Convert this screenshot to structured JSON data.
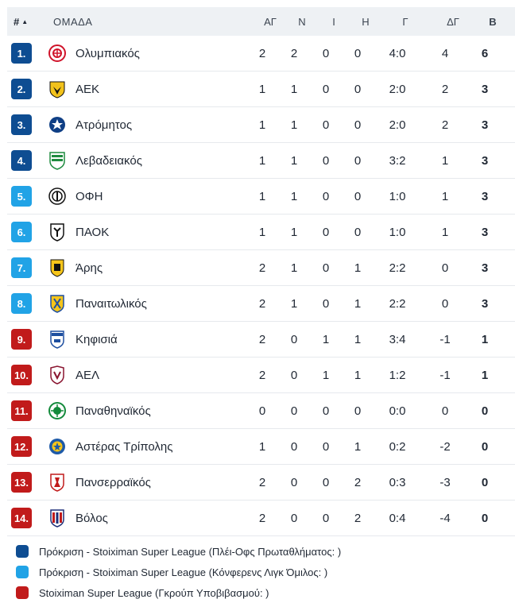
{
  "header": {
    "rank": "#",
    "sort_icon": "▲",
    "team": "ΟΜΑΔΑ",
    "gp": "ΑΓ",
    "w": "Ν",
    "d": "Ι",
    "l": "Η",
    "goals": "Γ",
    "gd": "ΔΓ",
    "pts": "Β"
  },
  "colors": {
    "dark_blue": "#0e4d92",
    "light_blue": "#21a3e6",
    "red": "#c11b1b"
  },
  "rows": [
    {
      "rank": "1.",
      "team": "Ολυμπιακός",
      "gp": "2",
      "w": "2",
      "d": "0",
      "l": "0",
      "goals": "4:0",
      "gd": "4",
      "pts": "6",
      "zone": "dark_blue",
      "crest_icon": "olympiakos-crest-icon"
    },
    {
      "rank": "2.",
      "team": "ΑΕΚ",
      "gp": "1",
      "w": "1",
      "d": "0",
      "l": "0",
      "goals": "2:0",
      "gd": "2",
      "pts": "3",
      "zone": "dark_blue",
      "crest_icon": "aek-crest-icon"
    },
    {
      "rank": "3.",
      "team": "Ατρόμητος",
      "gp": "1",
      "w": "1",
      "d": "0",
      "l": "0",
      "goals": "2:0",
      "gd": "2",
      "pts": "3",
      "zone": "dark_blue",
      "crest_icon": "atromitos-crest-icon"
    },
    {
      "rank": "4.",
      "team": "Λεβαδειακός",
      "gp": "1",
      "w": "1",
      "d": "0",
      "l": "0",
      "goals": "3:2",
      "gd": "1",
      "pts": "3",
      "zone": "dark_blue",
      "crest_icon": "levadiakos-crest-icon"
    },
    {
      "rank": "5.",
      "team": "ΟΦΗ",
      "gp": "1",
      "w": "1",
      "d": "0",
      "l": "0",
      "goals": "1:0",
      "gd": "1",
      "pts": "3",
      "zone": "light_blue",
      "crest_icon": "ofi-crest-icon"
    },
    {
      "rank": "6.",
      "team": "ΠΑΟΚ",
      "gp": "1",
      "w": "1",
      "d": "0",
      "l": "0",
      "goals": "1:0",
      "gd": "1",
      "pts": "3",
      "zone": "light_blue",
      "crest_icon": "paok-crest-icon"
    },
    {
      "rank": "7.",
      "team": "Άρης",
      "gp": "2",
      "w": "1",
      "d": "0",
      "l": "1",
      "goals": "2:2",
      "gd": "0",
      "pts": "3",
      "zone": "light_blue",
      "crest_icon": "aris-crest-icon"
    },
    {
      "rank": "8.",
      "team": "Παναιτωλικός",
      "gp": "2",
      "w": "1",
      "d": "0",
      "l": "1",
      "goals": "2:2",
      "gd": "0",
      "pts": "3",
      "zone": "light_blue",
      "crest_icon": "panaitolikos-crest-icon"
    },
    {
      "rank": "9.",
      "team": "Κηφισιά",
      "gp": "2",
      "w": "0",
      "d": "1",
      "l": "1",
      "goals": "3:4",
      "gd": "-1",
      "pts": "1",
      "zone": "red",
      "crest_icon": "kifisia-crest-icon"
    },
    {
      "rank": "10.",
      "team": "ΑΕΛ",
      "gp": "2",
      "w": "0",
      "d": "1",
      "l": "1",
      "goals": "1:2",
      "gd": "-1",
      "pts": "1",
      "zone": "red",
      "crest_icon": "ael-crest-icon"
    },
    {
      "rank": "11.",
      "team": "Παναθηναϊκός",
      "gp": "0",
      "w": "0",
      "d": "0",
      "l": "0",
      "goals": "0:0",
      "gd": "0",
      "pts": "0",
      "zone": "red",
      "crest_icon": "panathinaikos-crest-icon"
    },
    {
      "rank": "12.",
      "team": "Αστέρας Τρίπολης",
      "gp": "1",
      "w": "0",
      "d": "0",
      "l": "1",
      "goals": "0:2",
      "gd": "-2",
      "pts": "0",
      "zone": "red",
      "crest_icon": "asteras-tripolis-crest-icon"
    },
    {
      "rank": "13.",
      "team": "Πανσερραϊκός",
      "gp": "2",
      "w": "0",
      "d": "0",
      "l": "2",
      "goals": "0:3",
      "gd": "-3",
      "pts": "0",
      "zone": "red",
      "crest_icon": "panserraikos-crest-icon"
    },
    {
      "rank": "14.",
      "team": "Βόλος",
      "gp": "2",
      "w": "0",
      "d": "0",
      "l": "2",
      "goals": "0:4",
      "gd": "-4",
      "pts": "0",
      "zone": "red",
      "crest_icon": "volos-crest-icon"
    }
  ],
  "legend": [
    {
      "color": "dark_blue",
      "text": "Πρόκριση - Stoiximan Super League (Πλέι-Οφς Πρωταθλήματος: )"
    },
    {
      "color": "light_blue",
      "text": "Πρόκριση - Stoiximan Super League (Κόνφερενς Λιγκ Όμιλος: )"
    },
    {
      "color": "red",
      "text": "Stoiximan Super League (Γκρούπ Υποβιβασμού: )"
    }
  ]
}
